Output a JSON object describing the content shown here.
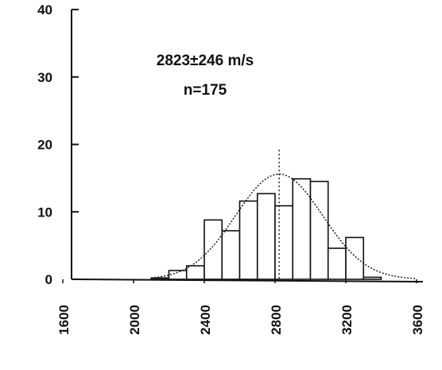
{
  "chart_data": {
    "type": "bar",
    "annotation_lines": [
      "2823±246 m/s",
      "n=175"
    ],
    "x_ticks": [
      "1600",
      "2000",
      "2400",
      "2800",
      "3200",
      "3600"
    ],
    "y_ticks": [
      "0",
      "10",
      "20",
      "30",
      "40"
    ],
    "xlim": [
      1600,
      3600
    ],
    "ylim": [
      0,
      40
    ],
    "bin_width": 100,
    "bins": [
      {
        "start": 2100,
        "count": 0.2
      },
      {
        "start": 2200,
        "count": 1.3
      },
      {
        "start": 2300,
        "count": 2.0
      },
      {
        "start": 2400,
        "count": 8.8
      },
      {
        "start": 2500,
        "count": 7.2
      },
      {
        "start": 2600,
        "count": 11.6
      },
      {
        "start": 2700,
        "count": 12.7
      },
      {
        "start": 2800,
        "count": 10.9
      },
      {
        "start": 2900,
        "count": 14.9
      },
      {
        "start": 3000,
        "count": 14.5
      },
      {
        "start": 3100,
        "count": 4.6
      },
      {
        "start": 3200,
        "count": 6.2
      },
      {
        "start": 3300,
        "count": 0.3
      }
    ],
    "normal_fit": {
      "mean": 2823,
      "sd": 246,
      "peak": 15.6
    },
    "mean_line": 2823,
    "colors": {
      "ink": "#111111",
      "bar_fill": "#ffffff"
    }
  }
}
